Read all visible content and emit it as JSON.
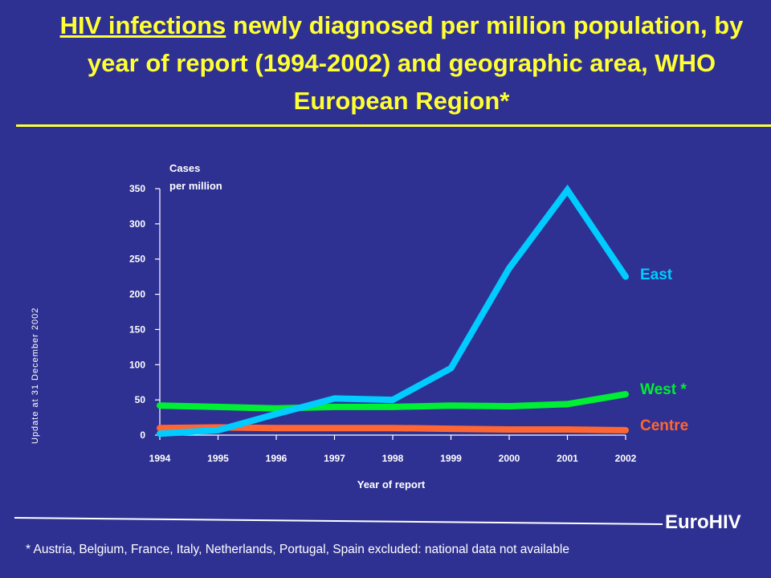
{
  "title": {
    "underlined": "HIV infections",
    "rest": " newly diagnosed per million population, by year of report (1994-2002) and geographic area, WHO European Region*"
  },
  "update_note": "Update at 31 December 2002",
  "brand": "EuroHIV",
  "footnote": "* Austria, Belgium, France, Italy, Netherlands, Portugal, Spain excluded: national data not available",
  "colors": {
    "background": "#2e3192",
    "title": "#ffff33",
    "axis": "#ffffff",
    "east": "#00ccff",
    "west": "#00ee33",
    "centre": "#ff6633"
  },
  "chart_data": {
    "type": "line",
    "title": "",
    "ylabel_line1": "Cases",
    "ylabel_line2": "per million",
    "xlabel": "Year of report",
    "x": [
      1994,
      1995,
      1996,
      1997,
      1998,
      1999,
      2000,
      2001,
      2002
    ],
    "ylim": [
      0,
      350
    ],
    "yticks": [
      0,
      50,
      100,
      150,
      200,
      250,
      300,
      350
    ],
    "grid": false,
    "legend": "labels at right end of each line",
    "series": [
      {
        "name": "East",
        "color": "#00ccff",
        "values": [
          2,
          7,
          30,
          52,
          50,
          95,
          237,
          348,
          225
        ]
      },
      {
        "name": "West *",
        "color": "#00ee33",
        "values": [
          42,
          40,
          38,
          40,
          40,
          42,
          41,
          44,
          58
        ]
      },
      {
        "name": "Centre",
        "color": "#ff6633",
        "values": [
          10,
          11,
          10,
          10,
          10,
          9,
          8,
          8,
          7
        ]
      }
    ]
  }
}
